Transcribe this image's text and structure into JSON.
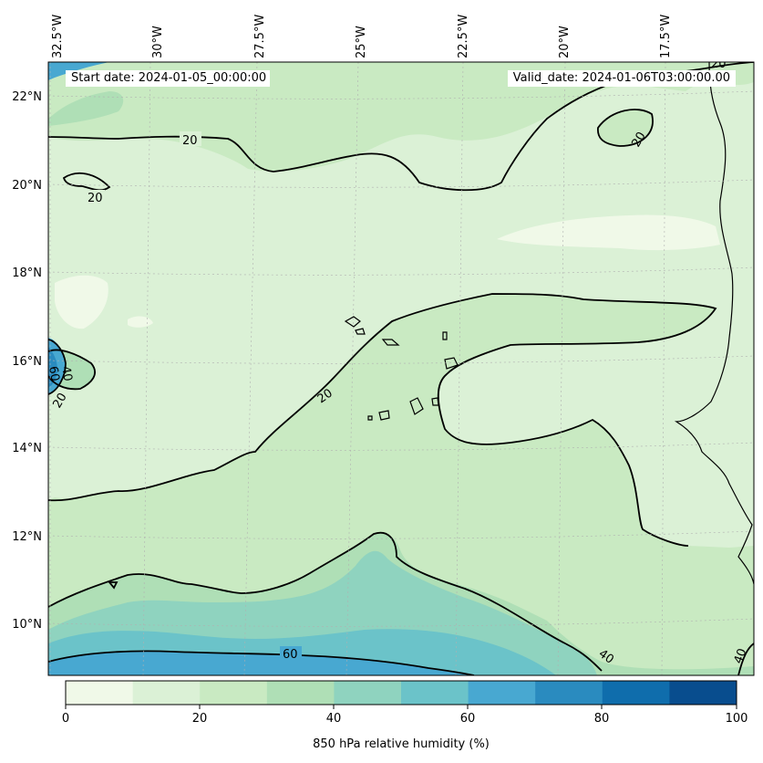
{
  "header": {
    "start_date": "Start date: 2024-01-05_00:00:00",
    "valid_date": "Valid_date: 2024-01-06T03:00:00.00"
  },
  "axes": {
    "lon_labels": [
      "32.5°W",
      "30°W",
      "27.5°W",
      "25°W",
      "22.5°W",
      "20°W",
      "17.5°W"
    ],
    "lat_labels": [
      "22°N",
      "20°N",
      "18°N",
      "16°N",
      "14°N",
      "12°N",
      "10°N"
    ]
  },
  "contour_labels": [
    "20",
    "20",
    "20",
    "20",
    "20",
    "40",
    "40",
    "40",
    "60",
    "60",
    "20"
  ],
  "colorbar": {
    "title": "850 hPa relative humidity (%)",
    "ticks": [
      "0",
      "20",
      "40",
      "60",
      "80",
      "100"
    ],
    "colors": [
      "#f0f9e8",
      "#dbf1d6",
      "#c9eac2",
      "#afdfb6",
      "#8fd3bf",
      "#6bc3c9",
      "#48a8d1",
      "#2a8bbf",
      "#0f6dac",
      "#084d8e"
    ]
  },
  "map_colors": {
    "coast": "#000000",
    "contour": "#000000",
    "grid": "#b0b0b0"
  }
}
